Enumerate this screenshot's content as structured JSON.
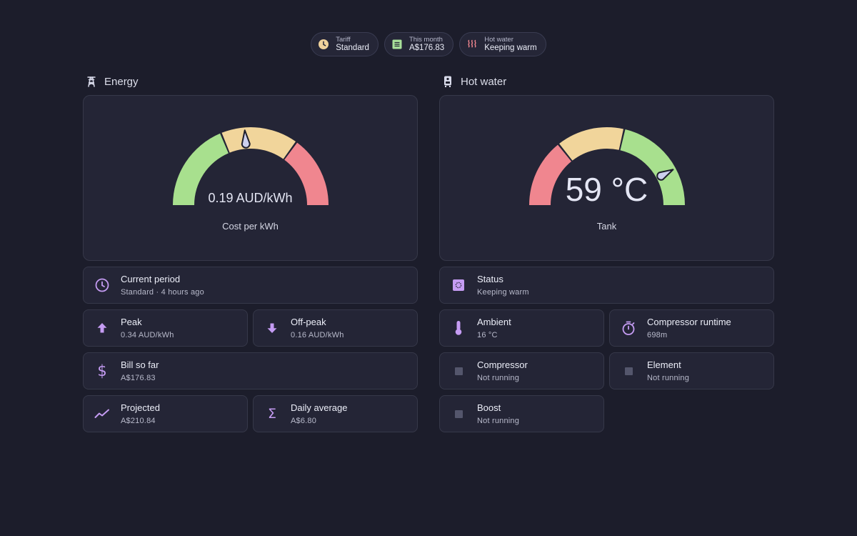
{
  "chips": [
    {
      "label": "Tariff",
      "value": "Standard",
      "icon": "clock-icon",
      "color": "#f0d29c"
    },
    {
      "label": "This month",
      "value": "A$176.83",
      "icon": "receipt-icon",
      "color": "#a8e09a"
    },
    {
      "label": "Hot water",
      "value": "Keeping warm",
      "icon": "heat-waves-icon",
      "color": "#f0868f"
    }
  ],
  "energy": {
    "title": "Energy",
    "gauge": {
      "value_text": "0.19 AUD/kWh",
      "label": "Cost per kWh",
      "value": 0.19,
      "min": 0,
      "max": 0.4,
      "segments": [
        {
          "from": 0,
          "to": 0.15,
          "color": "#a8e08e"
        },
        {
          "from": 0.15,
          "to": 0.28,
          "color": "#f1d59b"
        },
        {
          "from": 0.28,
          "to": 0.4,
          "color": "#f0868f"
        }
      ]
    },
    "current_period": {
      "name": "Current period",
      "value": "Standard · 4 hours ago"
    },
    "peak": {
      "name": "Peak",
      "value": "0.34 AUD/kWh"
    },
    "offpeak": {
      "name": "Off-peak",
      "value": "0.16 AUD/kWh"
    },
    "bill": {
      "name": "Bill so far",
      "value": "A$176.83"
    },
    "projected": {
      "name": "Projected",
      "value": "A$210.84"
    },
    "daily": {
      "name": "Daily average",
      "value": "A$6.80"
    }
  },
  "hotwater": {
    "title": "Hot water",
    "gauge": {
      "value_text": "59 °C",
      "label": "Tank",
      "value": 59,
      "min": 0,
      "max": 70,
      "segments": [
        {
          "from": 0,
          "to": 20,
          "color": "#f0868f"
        },
        {
          "from": 20,
          "to": 40,
          "color": "#f1d59b"
        },
        {
          "from": 40,
          "to": 70,
          "color": "#a8e08e"
        }
      ]
    },
    "status": {
      "name": "Status",
      "value": "Keeping warm"
    },
    "ambient": {
      "name": "Ambient",
      "value": "16 °C"
    },
    "runtime": {
      "name": "Compressor runtime",
      "value": "698m"
    },
    "compressor": {
      "name": "Compressor",
      "value": "Not running"
    },
    "element": {
      "name": "Element",
      "value": "Not running"
    },
    "boost": {
      "name": "Boost",
      "value": "Not running"
    }
  },
  "colors": {
    "accent": "#c59cf3",
    "needle": "#cdd0ee",
    "inactive": "#54566c"
  }
}
